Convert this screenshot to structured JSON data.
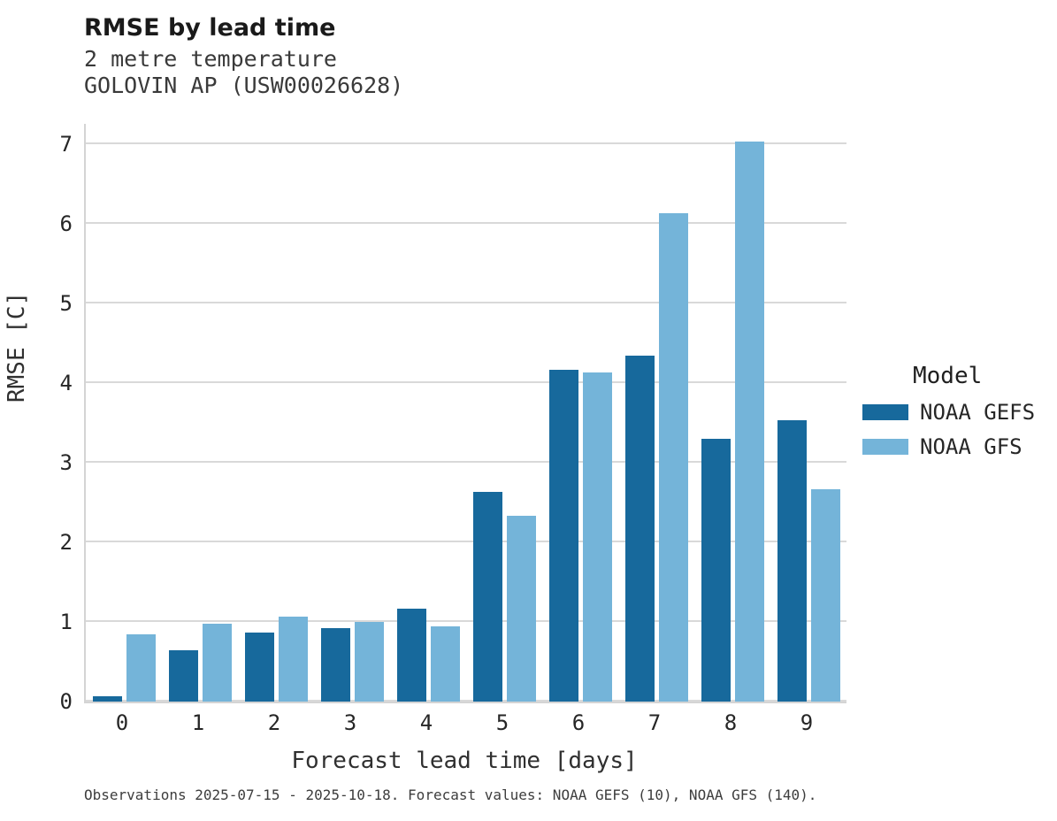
{
  "header": {
    "title": "RMSE by lead time",
    "subtitle1": "2 metre temperature",
    "subtitle2": "GOLOVIN AP (USW00026628)"
  },
  "chart_data": {
    "type": "bar",
    "title": "RMSE by lead time",
    "subtitle": "2 metre temperature — GOLOVIN AP (USW00026628)",
    "categories": [
      "0",
      "1",
      "2",
      "3",
      "4",
      "5",
      "6",
      "7",
      "8",
      "9"
    ],
    "series": [
      {
        "name": "NOAA GEFS",
        "color": "#17699c",
        "values": [
          0.07,
          0.65,
          0.87,
          0.92,
          1.17,
          2.63,
          4.17,
          4.35,
          3.3,
          3.53
        ]
      },
      {
        "name": "NOAA GFS",
        "color": "#74b4d9",
        "values": [
          0.84,
          0.98,
          1.07,
          1.0,
          0.95,
          2.33,
          4.13,
          6.13,
          7.03,
          2.67
        ]
      }
    ],
    "xlabel": "Forecast lead time [days]",
    "ylabel": "RMSE [C]",
    "ylim": [
      0,
      7.25
    ],
    "yticks": [
      0,
      1,
      2,
      3,
      4,
      5,
      6,
      7
    ],
    "grid": true,
    "legend_title": "Model",
    "legend_position": "right",
    "colors": {
      "gridline": "#d9d9d9",
      "axis": "#d4d4d4"
    }
  },
  "footer": {
    "caption": "Observations 2025-07-15 - 2025-10-18. Forecast values: NOAA GEFS (10), NOAA GFS (140)."
  }
}
